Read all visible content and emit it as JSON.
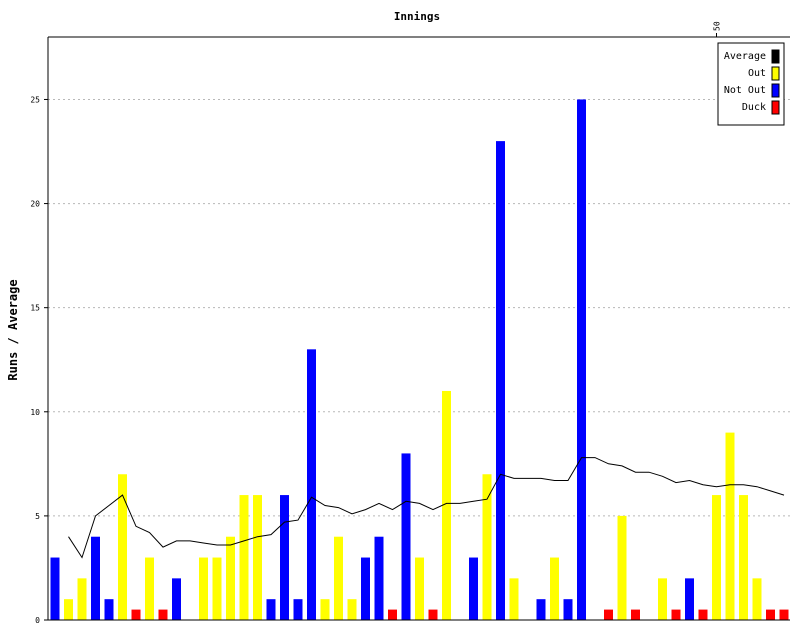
{
  "chart_data": {
    "type": "bar",
    "title": "Innings",
    "xlabel": "",
    "ylabel": "Runs / Average",
    "ylim": [
      0,
      28
    ],
    "yticks": [
      0,
      5,
      10,
      15,
      20,
      25
    ],
    "xticks": [
      {
        "innings": 50,
        "label": "50"
      }
    ],
    "grid": true,
    "legend_position": "top-right",
    "legend": [
      {
        "label": "Average",
        "color": "#000000"
      },
      {
        "label": "Out",
        "color": "#ffff00"
      },
      {
        "label": "Not Out",
        "color": "#0000ff"
      },
      {
        "label": "Duck",
        "color": "#ff0000"
      }
    ],
    "innings": [
      {
        "runs": 3,
        "type": "Not Out"
      },
      {
        "runs": 1,
        "type": "Out"
      },
      {
        "runs": 2,
        "type": "Out"
      },
      {
        "runs": 4,
        "type": "Not Out"
      },
      {
        "runs": 1,
        "type": "Not Out"
      },
      {
        "runs": 7,
        "type": "Out"
      },
      {
        "runs": 0,
        "type": "Duck"
      },
      {
        "runs": 3,
        "type": "Out"
      },
      {
        "runs": 0,
        "type": "Duck"
      },
      {
        "runs": 2,
        "type": "Not Out"
      },
      {
        "runs": null,
        "type": ""
      },
      {
        "runs": 3,
        "type": "Out"
      },
      {
        "runs": 3,
        "type": "Out"
      },
      {
        "runs": 4,
        "type": "Out"
      },
      {
        "runs": 6,
        "type": "Out"
      },
      {
        "runs": 6,
        "type": "Out"
      },
      {
        "runs": 1,
        "type": "Not Out"
      },
      {
        "runs": 6,
        "type": "Not Out"
      },
      {
        "runs": 1,
        "type": "Not Out"
      },
      {
        "runs": 13,
        "type": "Not Out"
      },
      {
        "runs": 1,
        "type": "Out"
      },
      {
        "runs": 4,
        "type": "Out"
      },
      {
        "runs": 1,
        "type": "Out"
      },
      {
        "runs": 3,
        "type": "Not Out"
      },
      {
        "runs": 4,
        "type": "Not Out"
      },
      {
        "runs": 0,
        "type": "Duck"
      },
      {
        "runs": 8,
        "type": "Not Out"
      },
      {
        "runs": 3,
        "type": "Out"
      },
      {
        "runs": 0,
        "type": "Duck"
      },
      {
        "runs": 11,
        "type": "Out"
      },
      {
        "runs": null,
        "type": ""
      },
      {
        "runs": 3,
        "type": "Not Out"
      },
      {
        "runs": 7,
        "type": "Out"
      },
      {
        "runs": 23,
        "type": "Not Out"
      },
      {
        "runs": 2,
        "type": "Out"
      },
      {
        "runs": null,
        "type": ""
      },
      {
        "runs": 1,
        "type": "Not Out"
      },
      {
        "runs": 3,
        "type": "Out"
      },
      {
        "runs": 1,
        "type": "Not Out"
      },
      {
        "runs": 25,
        "type": "Not Out"
      },
      {
        "runs": null,
        "type": ""
      },
      {
        "runs": 0,
        "type": "Duck"
      },
      {
        "runs": 5,
        "type": "Out"
      },
      {
        "runs": 0,
        "type": "Duck"
      },
      {
        "runs": null,
        "type": ""
      },
      {
        "runs": 2,
        "type": "Out"
      },
      {
        "runs": 0,
        "type": "Duck"
      },
      {
        "runs": 2,
        "type": "Not Out"
      },
      {
        "runs": 0,
        "type": "Duck"
      },
      {
        "runs": 6,
        "type": "Out"
      },
      {
        "runs": 9,
        "type": "Out"
      },
      {
        "runs": 6,
        "type": "Out"
      },
      {
        "runs": 2,
        "type": "Out"
      },
      {
        "runs": 0,
        "type": "Duck"
      },
      {
        "runs": 0,
        "type": "Duck"
      }
    ],
    "average": [
      null,
      4.0,
      3.0,
      5.0,
      5.5,
      6.0,
      4.5,
      4.2,
      3.5,
      3.8,
      3.8,
      3.7,
      3.6,
      3.6,
      3.8,
      4.0,
      4.1,
      4.7,
      4.8,
      5.9,
      5.5,
      5.4,
      5.1,
      5.3,
      5.6,
      5.3,
      5.7,
      5.6,
      5.3,
      5.6,
      5.6,
      5.7,
      5.8,
      7.0,
      6.8,
      6.8,
      6.8,
      6.7,
      6.7,
      7.8,
      7.8,
      7.5,
      7.4,
      7.1,
      7.1,
      6.9,
      6.6,
      6.7,
      6.5,
      6.4,
      6.5,
      6.5,
      6.4,
      6.2,
      6.0
    ]
  }
}
